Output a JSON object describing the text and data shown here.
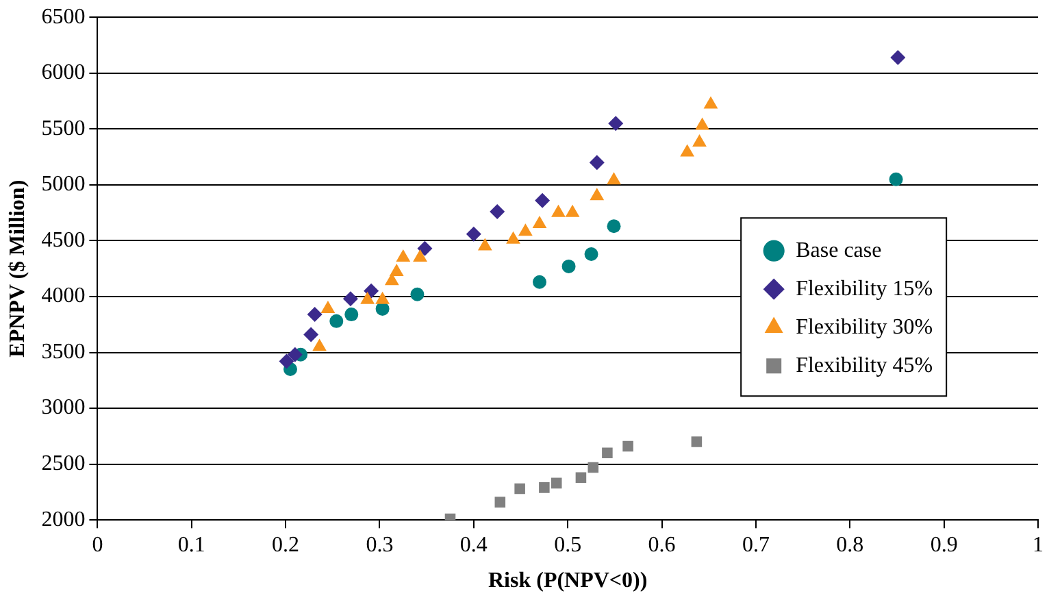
{
  "chart_data": {
    "type": "scatter",
    "xlabel": "Risk (P(NPV<0))",
    "ylabel": "EPNPV ($ Million)",
    "xlim": [
      0,
      1
    ],
    "xticks": [
      0,
      0.1,
      0.2,
      0.3,
      0.4,
      0.5,
      0.6,
      0.7,
      0.8,
      0.9,
      1
    ],
    "ylim": [
      2000,
      6500
    ],
    "yticks": [
      2000,
      2500,
      3000,
      3500,
      4000,
      4500,
      5000,
      5500,
      6000,
      6500
    ],
    "grid": "y",
    "legend": "right",
    "series": [
      {
        "name": "Base case",
        "marker": "circle",
        "color": "#008080",
        "x": [
          0.205,
          0.216,
          0.254,
          0.27,
          0.303,
          0.34,
          0.47,
          0.501,
          0.525,
          0.549,
          0.849
        ],
        "values": [
          3350,
          3480,
          3780,
          3840,
          3890,
          4020,
          4130,
          4270,
          4380,
          4630,
          5050
        ]
      },
      {
        "name": "Flexibility 15%",
        "marker": "diamond",
        "color": "#3b2a8c",
        "x": [
          0.201,
          0.21,
          0.227,
          0.231,
          0.269,
          0.291,
          0.348,
          0.4,
          0.425,
          0.473,
          0.531,
          0.551,
          0.851
        ],
        "values": [
          3420,
          3480,
          3660,
          3840,
          3980,
          4050,
          4430,
          4560,
          4760,
          4860,
          5200,
          5550,
          6140
        ]
      },
      {
        "name": "Flexibility 30%",
        "marker": "triangle",
        "color": "#f7941d",
        "x": [
          0.236,
          0.245,
          0.287,
          0.303,
          0.313,
          0.318,
          0.325,
          0.343,
          0.412,
          0.442,
          0.455,
          0.47,
          0.49,
          0.505,
          0.531,
          0.549,
          0.627,
          0.64,
          0.643,
          0.652
        ],
        "values": [
          3550,
          3890,
          3970,
          3970,
          4140,
          4220,
          4350,
          4350,
          4450,
          4510,
          4580,
          4650,
          4750,
          4750,
          4900,
          5040,
          5290,
          5380,
          5530,
          5720
        ]
      },
      {
        "name": "Flexibility 45%",
        "marker": "square",
        "color": "#808080",
        "x": [
          0.375,
          0.428,
          0.449,
          0.475,
          0.488,
          0.514,
          0.527,
          0.542,
          0.564,
          0.637
        ],
        "values": [
          2010,
          2160,
          2280,
          2290,
          2330,
          2380,
          2470,
          2600,
          2660,
          2700
        ]
      }
    ]
  }
}
